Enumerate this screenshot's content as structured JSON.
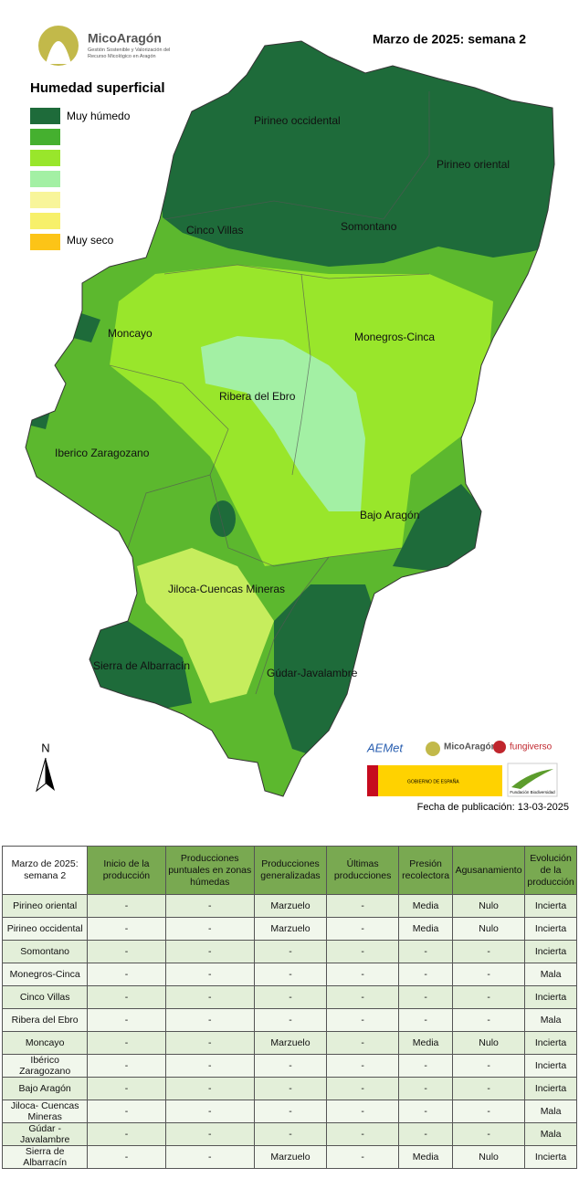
{
  "header": {
    "title": "Marzo de 2025: semana 2",
    "logo_name": "MicoAragón",
    "logo_tagline": "Gestión Sostenible y Valorización del Recurso Micológico en Aragón"
  },
  "legend": {
    "title": "Humedad superficial",
    "labels": [
      "Muy húmedo",
      "Muy seco"
    ]
  },
  "map": {
    "north": "N",
    "regions": [
      "Pirineo occidental",
      "Pirineo oriental",
      "Cinco Villas",
      "Somontano",
      "Moncayo",
      "Monegros-Cinca",
      "Ribera del Ebro",
      "Iberico Zaragozano",
      "Bajo Aragón",
      "Jiloca-Cuencas Mineras",
      "Sierra de Albarracín",
      "Gúdar-Javalambre"
    ]
  },
  "footer": {
    "logos": [
      "AEMet",
      "MicoAragón",
      "fungiverso",
      "GOBIERNO DE ESPAÑA",
      "Fundación Biodiversidad"
    ],
    "date": "Fecha de publicación: 13-03-2025"
  },
  "table": {
    "columns": [
      "Marzo de 2025: semana 2",
      "Inicio de la producción",
      "Producciones puntuales en zonas húmedas",
      "Producciones generalizadas",
      "Últimas producciones",
      "Presión recolectora",
      "Agusanamiento",
      "Evolución de la producción"
    ],
    "rows": [
      [
        "Pirineo oriental",
        "-",
        "-",
        "Marzuelo",
        "-",
        "Media",
        "Nulo",
        "Incierta"
      ],
      [
        "Pirineo occidental",
        "-",
        "-",
        "Marzuelo",
        "-",
        "Media",
        "Nulo",
        "Incierta"
      ],
      [
        "Somontano",
        "-",
        "-",
        "-",
        "-",
        "-",
        "-",
        "Incierta"
      ],
      [
        "Monegros-Cinca",
        "-",
        "-",
        "-",
        "-",
        "-",
        "-",
        "Mala"
      ],
      [
        "Cinco Villas",
        "-",
        "-",
        "-",
        "-",
        "-",
        "-",
        "Incierta"
      ],
      [
        "Ribera del Ebro",
        "-",
        "-",
        "-",
        "-",
        "-",
        "-",
        "Mala"
      ],
      [
        "Moncayo",
        "-",
        "-",
        "Marzuelo",
        "-",
        "Media",
        "Nulo",
        "Incierta"
      ],
      [
        "Ibérico Zaragozano",
        "-",
        "-",
        "-",
        "-",
        "-",
        "-",
        "Incierta"
      ],
      [
        "Bajo Aragón",
        "-",
        "-",
        "-",
        "-",
        "-",
        "-",
        "Incierta"
      ],
      [
        "Jiloca- Cuencas Mineras",
        "-",
        "-",
        "-",
        "-",
        "-",
        "-",
        "Mala"
      ],
      [
        "Gúdar - Javalambre",
        "-",
        "-",
        "-",
        "-",
        "-",
        "-",
        "Mala"
      ],
      [
        "Sierra de Albarracín",
        "-",
        "-",
        "Marzuelo",
        "-",
        "Media",
        "Nulo",
        "Incierta"
      ]
    ]
  }
}
